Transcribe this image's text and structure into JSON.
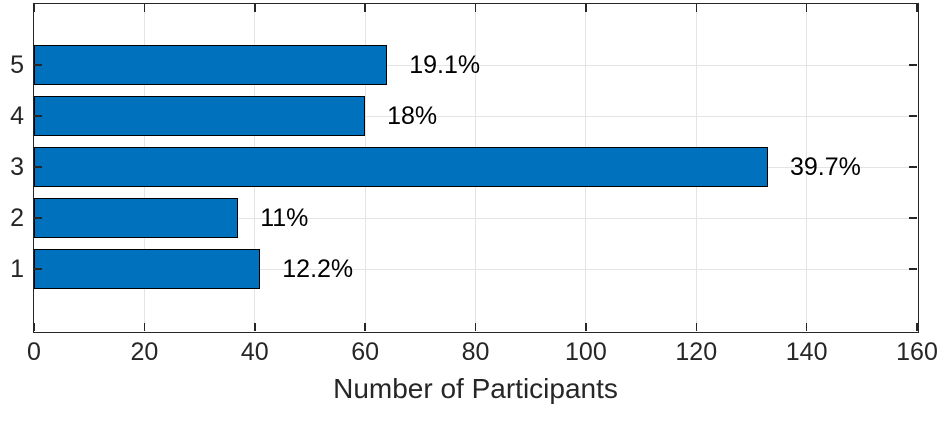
{
  "chart_data": {
    "type": "bar",
    "orientation": "horizontal",
    "title": "",
    "xlabel": "Number of Participants",
    "ylabel": "",
    "categories": [
      "1",
      "2",
      "3",
      "4",
      "5"
    ],
    "values": [
      41,
      37,
      133,
      60,
      64
    ],
    "bar_labels": [
      "12.2%",
      "11%",
      "39.7%",
      "18%",
      "19.1%"
    ],
    "xlim": [
      0,
      160
    ],
    "xticks": [
      0,
      20,
      40,
      60,
      80,
      100,
      120,
      140,
      160
    ],
    "xtick_labels": [
      "0",
      "20",
      "40",
      "60",
      "80",
      "100",
      "120",
      "140",
      "160"
    ],
    "grid": true,
    "legend": "none",
    "colors": {
      "bar_fill": "#0072BD",
      "bar_edge": "#000000",
      "grid": "#e4e4e4",
      "axis": "#262626",
      "tick_label_text": "#262626",
      "bar_label_text": "#000000",
      "background": "#ffffff"
    }
  }
}
